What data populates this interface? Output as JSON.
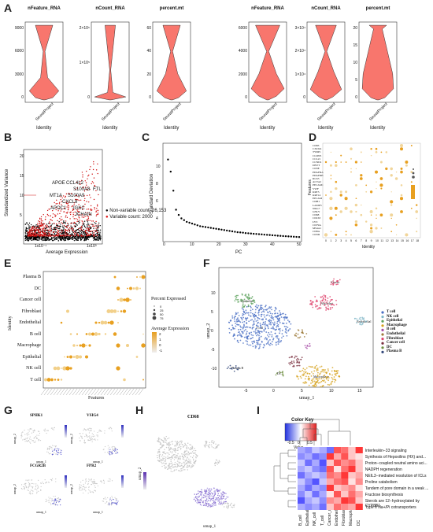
{
  "panels": {
    "A": "A",
    "B": "B",
    "C": "C",
    "D": "D",
    "E": "E",
    "F": "F",
    "G": "G",
    "H": "H",
    "I": "I"
  },
  "violin": {
    "plots": [
      {
        "title": "nFeature_RNA",
        "ticks": [
          "9000",
          "6000",
          "3000",
          "0"
        ]
      },
      {
        "title": "nCount_RNA",
        "ticks": [
          "2×10⁵",
          "1×10⁵",
          "0"
        ]
      },
      {
        "title": "percent.mt",
        "ticks": [
          "60",
          "40",
          "20",
          "0"
        ]
      },
      {
        "title": "nFeature_RNA",
        "ticks": [
          "6000",
          "4000",
          "2000",
          "0"
        ]
      },
      {
        "title": "nCount_RNA",
        "ticks": [
          "3×10⁴",
          "2×10⁴",
          "1×10⁴",
          "0"
        ]
      },
      {
        "title": "percent.mt",
        "ticks": [
          "20",
          "15",
          "10",
          "5",
          "0"
        ]
      }
    ],
    "xtick": "SeuratProject",
    "xlabel": "Identity",
    "fill": "#f8766d"
  },
  "panelB": {
    "ylabel": "Standardized Variance",
    "xlabel": "Average Expression",
    "xticks": [
      "1x10⁻¹",
      "1x10³"
    ],
    "yticks": [
      "20",
      "15",
      "10",
      "5"
    ],
    "legend": [
      "Non-variable count: 26,153",
      "Variable count: 2000"
    ],
    "genes": [
      "APOE",
      "CCL4L2",
      "S100A8",
      "FTL",
      "MT1A",
      "S100A9",
      "CXCL8",
      "APOC1",
      "IGKC",
      "JCHAIN"
    ]
  },
  "panelC": {
    "ylabel": "Standard Deviation",
    "xlabel": "PC",
    "xticks": [
      "0",
      "10",
      "20",
      "30",
      "40",
      "50"
    ],
    "yticks": [
      "10",
      "8",
      "6",
      "4"
    ]
  },
  "panelD": {
    "ylabel": "Features",
    "xlabel": "Identity",
    "features": [
      "CD83",
      "CXCR4",
      "TYRP1",
      "CLDN5",
      "CCL21",
      "CCND1",
      "DNTT",
      "CD3E",
      "PDGFRA",
      "PDGFRB",
      "RGS5",
      "ACTA2",
      "PECAM1",
      "VWF",
      "KRT5",
      "KRT14",
      "EPCAM",
      "CDH1",
      "LAMP3",
      "NKG7",
      "GNLY",
      "CD68",
      "CD163",
      "LYZ",
      "CD79A",
      "MS4A1",
      "CD8A",
      "CD3D"
    ],
    "xticks": [
      "0",
      "1",
      "2",
      "3",
      "4",
      "5",
      "6",
      "7",
      "8",
      "9",
      "10",
      "11",
      "12",
      "13",
      "14",
      "15",
      "16",
      "17",
      "18"
    ]
  },
  "panelE": {
    "ylabel": "Identity",
    "xlabel": "Features",
    "rows": [
      "Plasma B",
      "DC",
      "Cancer cell",
      "Fibroblast",
      "Endothelial",
      "B cell",
      "Macrophage",
      "Epithelial",
      "NK cell",
      "T cell"
    ],
    "legend_pct_title": "Percent Expressed",
    "legend_pct": [
      "0",
      "25",
      "50",
      "75"
    ],
    "legend_avg_title": "Average Expression",
    "legend_avg": [
      "2",
      "1",
      "0",
      "-1"
    ]
  },
  "panelF": {
    "xlabel": "umap_1",
    "ylabel": "umap_2",
    "xticks": [
      "-5",
      "0",
      "5",
      "10",
      "15"
    ],
    "yticks": [
      "10",
      "5",
      "0",
      "-5",
      "-10"
    ],
    "clusters": [
      {
        "name": "T cell",
        "color": "#4a6fc4"
      },
      {
        "name": "NK cell",
        "color": "#7fb7c7"
      },
      {
        "name": "Epithelial",
        "color": "#5aa05a"
      },
      {
        "name": "Macrophage",
        "color": "#d6a21e"
      },
      {
        "name": "B cell",
        "color": "#a64ca6"
      },
      {
        "name": "Endothelial",
        "color": "#9e7b3a"
      },
      {
        "name": "Fibroblast",
        "color": "#e0456e"
      },
      {
        "name": "Cancer cell",
        "color": "#7a3040"
      },
      {
        "name": "DC",
        "color": "#6d8f3f"
      },
      {
        "name": "Plasma B",
        "color": "#33487a"
      }
    ],
    "map_labels": {
      "t": "T cell",
      "epi": "Epithelial",
      "fib": "Fibroblast",
      "mac": "Macrophage",
      "pb": "Plasma B",
      "dc": "DC",
      "nk": "NK",
      "endo": "Endothelial",
      "cancer": "Cancer"
    }
  },
  "panelG": {
    "genes": [
      "SPHK1",
      "VSIG4",
      "FCGR2B",
      "FPR2"
    ],
    "xlabel": "umap_1",
    "ylabel": "umap_2"
  },
  "panelH": {
    "gene": "CD68",
    "xlabel": "umap_1",
    "ylabel": "umap_2"
  },
  "panelI": {
    "color_key_title": "Color Key",
    "key_ticks": [
      "-0.5",
      "0",
      "0.5"
    ],
    "key_label": "Value",
    "rows": [
      "Interleukin−33 signaling",
      "Synthesis of Hepoxilins (HX) and...",
      "Proton−coupled neutral amino aci...",
      "NADPH regeneration",
      "NEIL3−mediated resolution of ICLs",
      "Proline catabolism",
      "Tandem of pore domain in a weak ...",
      "Fructose biosynthesis",
      "Sterols are 12−hydroxylated by CYP8B1",
      "Type II Na+/Pi cotransporters"
    ],
    "cols": [
      "B_cell",
      "Epithelial",
      "NK_cell",
      "T_cell",
      "Cancer_cell",
      "Endothelial",
      "Fibroblast",
      "Macrophage",
      "DC"
    ],
    "values": [
      [
        -0.3,
        -0.4,
        -0.2,
        -0.3,
        -0.5,
        0.6,
        0.5,
        0.2,
        0.7
      ],
      [
        -0.4,
        -0.3,
        -0.5,
        -0.4,
        0.7,
        0.3,
        0.6,
        0.2,
        0.1
      ],
      [
        -0.2,
        -0.5,
        -0.3,
        -0.6,
        0.2,
        0.6,
        0.4,
        0.5,
        0.2
      ],
      [
        -0.3,
        -0.2,
        -0.4,
        -0.5,
        0.6,
        0.1,
        0.5,
        0.7,
        0.2
      ],
      [
        -0.5,
        -0.3,
        -0.2,
        -0.3,
        0.5,
        0.4,
        0.7,
        0.2,
        0.3
      ],
      [
        -0.2,
        -0.4,
        -0.6,
        -0.2,
        0.3,
        0.5,
        0.6,
        0.1,
        0.4
      ],
      [
        -0.3,
        -0.5,
        -0.3,
        -0.4,
        0.7,
        0.2,
        0.3,
        0.4,
        0.1
      ],
      [
        -0.4,
        -0.2,
        -0.5,
        -0.3,
        0.1,
        0.6,
        0.2,
        0.5,
        0.3
      ],
      [
        -0.6,
        -0.3,
        -0.2,
        -0.4,
        0.4,
        0.3,
        0.7,
        0.6,
        0.2
      ],
      [
        -0.3,
        -0.4,
        -0.3,
        -0.5,
        0.2,
        0.5,
        0.4,
        0.3,
        0.7
      ]
    ]
  }
}
